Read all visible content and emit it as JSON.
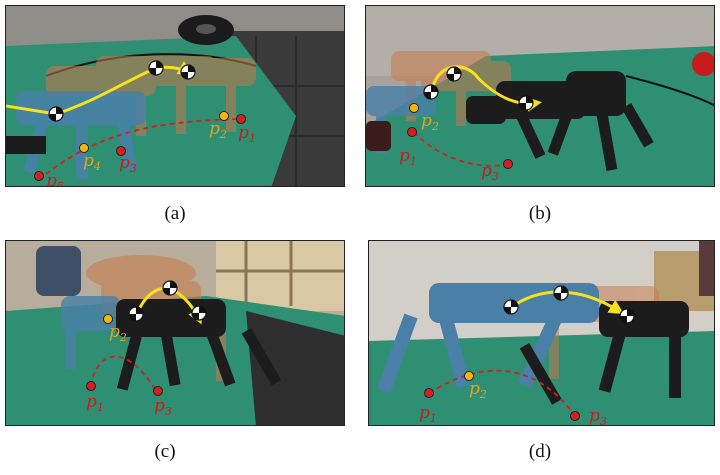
{
  "colors": {
    "robot_blue": "#4a7fa8",
    "robot_orange": "#c8794a",
    "robot_black": "#1c1c1c",
    "trajectory_yellow": "#f7e01c",
    "point_red": "#d71e1e",
    "label_red": "#c41f1f",
    "label_yellow": "#e3a11b",
    "mat_green": "#2f8f73"
  },
  "panels": [
    {
      "caption": "(a)",
      "points": [
        {
          "label": "p",
          "sub": "1",
          "color": "red"
        },
        {
          "label": "p",
          "sub": "2",
          "color": "yellow"
        },
        {
          "label": "p",
          "sub": "3",
          "color": "red"
        },
        {
          "label": "p",
          "sub": "4",
          "color": "yellow"
        },
        {
          "label": "p",
          "sub": "5",
          "color": "red"
        }
      ]
    },
    {
      "caption": "(b)",
      "points": [
        {
          "label": "p",
          "sub": "1",
          "color": "red"
        },
        {
          "label": "p",
          "sub": "2",
          "color": "yellow"
        },
        {
          "label": "p",
          "sub": "3",
          "color": "red"
        }
      ]
    },
    {
      "caption": "(c)",
      "points": [
        {
          "label": "p",
          "sub": "1",
          "color": "red"
        },
        {
          "label": "p",
          "sub": "2",
          "color": "yellow"
        },
        {
          "label": "p",
          "sub": "3",
          "color": "red"
        }
      ]
    },
    {
      "caption": "(d)",
      "points": [
        {
          "label": "p",
          "sub": "1",
          "color": "red"
        },
        {
          "label": "p",
          "sub": "2",
          "color": "yellow"
        },
        {
          "label": "p",
          "sub": "3",
          "color": "red"
        }
      ]
    }
  ]
}
